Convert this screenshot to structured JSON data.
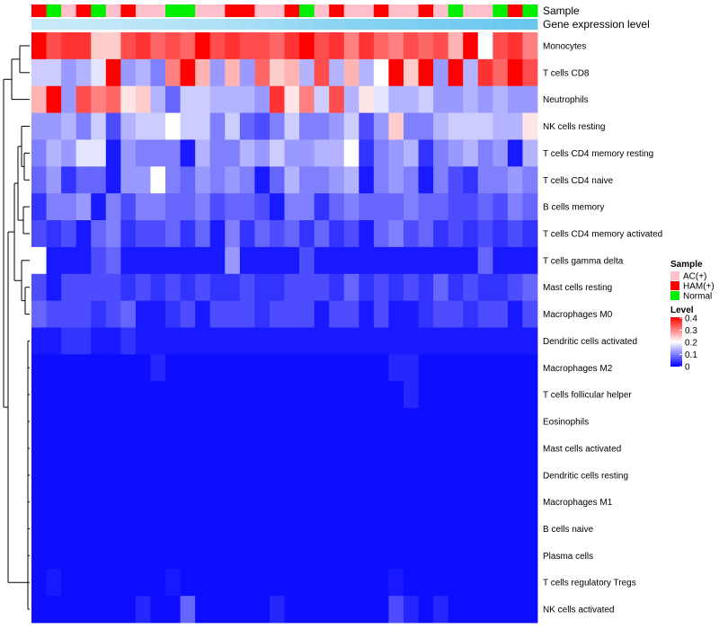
{
  "chart_data": {
    "type": "heatmap",
    "annotation_labels": {
      "sample": "Sample",
      "gene_level": "Gene expression level"
    },
    "rows": [
      "Monocytes",
      "T cells CD8",
      "Neutrophils",
      "NK cells resting",
      "T cells CD4 memory resting",
      "T cells CD4 naive",
      "B cells memory",
      "T cells CD4 memory activated",
      "T cells gamma delta",
      "Mast cells resting",
      "Macrophages M0",
      "Dendritic cells activated",
      "Macrophages M2",
      "T cells follicular helper",
      "Eosinophils",
      "Mast cells activated",
      "Dendritic cells resting",
      "Macrophages M1",
      "B cells naive",
      "Plasma cells",
      "T cells regulatory  Tregs",
      "NK cells activated"
    ],
    "sample_groups": [
      "HAM",
      "NOR",
      "AC",
      "HAM",
      "NOR",
      "AC",
      "HAM",
      "AC",
      "AC",
      "NOR",
      "NOR",
      "AC",
      "AC",
      "HAM",
      "HAM",
      "AC",
      "AC",
      "HAM",
      "NOR",
      "AC",
      "HAM",
      "AC",
      "AC",
      "HAM",
      "AC",
      "AC",
      "HAM",
      "AC",
      "NOR",
      "AC",
      "AC",
      "NOR",
      "HAM",
      "NOR"
    ],
    "gene_level": [
      0.2,
      0.21,
      0.22,
      0.24,
      0.25,
      0.27,
      0.28,
      0.3,
      0.32,
      0.34,
      0.36,
      0.38,
      0.4,
      0.42,
      0.45,
      0.48,
      0.52,
      0.56,
      0.6,
      0.64,
      0.66,
      0.68,
      0.7,
      0.72,
      0.74,
      0.76,
      0.78,
      0.8,
      0.82,
      0.84,
      0.86,
      0.88,
      0.9,
      0.92
    ],
    "matrix": [
      [
        0.4,
        0.34,
        0.36,
        0.36,
        0.24,
        0.24,
        0.34,
        0.36,
        0.32,
        0.34,
        0.32,
        0.4,
        0.34,
        0.36,
        0.34,
        0.34,
        0.32,
        0.36,
        0.4,
        0.34,
        0.36,
        0.3,
        0.36,
        0.32,
        0.3,
        0.34,
        0.32,
        0.34,
        0.26,
        0.4,
        0.2,
        0.34,
        0.36,
        0.3
      ],
      [
        0.16,
        0.16,
        0.12,
        0.14,
        0.18,
        0.4,
        0.12,
        0.14,
        0.1,
        0.3,
        0.4,
        0.26,
        0.12,
        0.26,
        0.12,
        0.32,
        0.24,
        0.26,
        0.14,
        0.34,
        0.14,
        0.26,
        0.14,
        0.2,
        0.4,
        0.24,
        0.4,
        0.12,
        0.4,
        0.14,
        0.36,
        0.32,
        0.4,
        0.34
      ],
      [
        0.26,
        0.4,
        0.12,
        0.34,
        0.3,
        0.32,
        0.22,
        0.24,
        0.14,
        0.08,
        0.16,
        0.16,
        0.14,
        0.14,
        0.14,
        0.12,
        0.36,
        0.22,
        0.3,
        0.16,
        0.34,
        0.14,
        0.22,
        0.18,
        0.14,
        0.14,
        0.16,
        0.12,
        0.12,
        0.14,
        0.12,
        0.14,
        0.12,
        0.12
      ],
      [
        0.12,
        0.12,
        0.14,
        0.1,
        0.16,
        0.06,
        0.14,
        0.16,
        0.16,
        0.2,
        0.16,
        0.16,
        0.1,
        0.16,
        0.08,
        0.06,
        0.1,
        0.16,
        0.1,
        0.1,
        0.12,
        0.16,
        0.06,
        0.12,
        0.24,
        0.1,
        0.1,
        0.14,
        0.16,
        0.16,
        0.16,
        0.14,
        0.14,
        0.22
      ],
      [
        0.1,
        0.14,
        0.12,
        0.18,
        0.18,
        0.02,
        0.12,
        0.1,
        0.1,
        0.1,
        0.02,
        0.14,
        0.1,
        0.1,
        0.14,
        0.12,
        0.16,
        0.12,
        0.12,
        0.14,
        0.14,
        0.2,
        0.04,
        0.1,
        0.12,
        0.14,
        0.04,
        0.1,
        0.12,
        0.14,
        0.1,
        0.12,
        0.02,
        0.14
      ],
      [
        0.08,
        0.12,
        0.04,
        0.08,
        0.08,
        0.02,
        0.12,
        0.12,
        0.2,
        0.1,
        0.08,
        0.12,
        0.1,
        0.12,
        0.1,
        0.02,
        0.08,
        0.14,
        0.1,
        0.1,
        0.12,
        0.14,
        0.02,
        0.1,
        0.12,
        0.1,
        0.02,
        0.1,
        0.06,
        0.04,
        0.1,
        0.1,
        0.12,
        0.1
      ],
      [
        0.04,
        0.1,
        0.1,
        0.12,
        0.02,
        0.1,
        0.06,
        0.1,
        0.1,
        0.08,
        0.08,
        0.1,
        0.06,
        0.08,
        0.08,
        0.06,
        0.02,
        0.1,
        0.1,
        0.04,
        0.08,
        0.1,
        0.08,
        0.08,
        0.08,
        0.1,
        0.08,
        0.08,
        0.06,
        0.06,
        0.08,
        0.06,
        0.1,
        0.08
      ],
      [
        0.06,
        0.04,
        0.06,
        0.02,
        0.08,
        0.1,
        0.04,
        0.06,
        0.06,
        0.08,
        0.04,
        0.08,
        0.02,
        0.1,
        0.04,
        0.08,
        0.06,
        0.08,
        0.04,
        0.08,
        0.04,
        0.06,
        0.02,
        0.08,
        0.1,
        0.06,
        0.08,
        0.04,
        0.06,
        0.04,
        0.06,
        0.04,
        0.06,
        0.04
      ],
      [
        0.2,
        0.02,
        0.02,
        0.02,
        0.06,
        0.08,
        0.02,
        0.02,
        0.02,
        0.02,
        0.02,
        0.02,
        0.02,
        0.12,
        0.02,
        0.02,
        0.02,
        0.02,
        0.06,
        0.02,
        0.02,
        0.02,
        0.02,
        0.02,
        0.02,
        0.02,
        0.02,
        0.02,
        0.02,
        0.02,
        0.08,
        0.02,
        0.02,
        0.02
      ],
      [
        0.06,
        0.02,
        0.06,
        0.06,
        0.06,
        0.06,
        0.04,
        0.06,
        0.04,
        0.06,
        0.04,
        0.06,
        0.04,
        0.04,
        0.06,
        0.04,
        0.04,
        0.06,
        0.06,
        0.06,
        0.04,
        0.08,
        0.04,
        0.06,
        0.04,
        0.06,
        0.04,
        0.08,
        0.04,
        0.06,
        0.04,
        0.04,
        0.06,
        0.08
      ],
      [
        0.08,
        0.06,
        0.06,
        0.06,
        0.04,
        0.06,
        0.08,
        0.02,
        0.02,
        0.04,
        0.06,
        0.02,
        0.06,
        0.06,
        0.06,
        0.04,
        0.06,
        0.06,
        0.06,
        0.02,
        0.06,
        0.06,
        0.02,
        0.06,
        0.02,
        0.02,
        0.04,
        0.06,
        0.06,
        0.04,
        0.06,
        0.06,
        0.02,
        0.06
      ],
      [
        0.02,
        0.02,
        0.04,
        0.04,
        0.02,
        0.02,
        0.04,
        0.02,
        0.02,
        0.02,
        0.02,
        0.02,
        0.02,
        0.02,
        0.02,
        0.02,
        0.02,
        0.02,
        0.02,
        0.02,
        0.02,
        0.02,
        0.02,
        0.02,
        0.02,
        0.02,
        0.02,
        0.02,
        0.02,
        0.02,
        0.02,
        0.02,
        0.02,
        0.02
      ],
      [
        0.01,
        0.01,
        0.01,
        0.01,
        0.01,
        0.01,
        0.01,
        0.01,
        0.03,
        0.01,
        0.01,
        0.01,
        0.01,
        0.01,
        0.01,
        0.01,
        0.01,
        0.01,
        0.01,
        0.01,
        0.01,
        0.01,
        0.01,
        0.01,
        0.03,
        0.03,
        0.01,
        0.01,
        0.01,
        0.01,
        0.01,
        0.01,
        0.01,
        0.01
      ],
      [
        0.01,
        0.01,
        0.01,
        0.01,
        0.01,
        0.01,
        0.01,
        0.01,
        0.01,
        0.01,
        0.01,
        0.01,
        0.01,
        0.01,
        0.01,
        0.01,
        0.01,
        0.01,
        0.01,
        0.01,
        0.01,
        0.01,
        0.01,
        0.01,
        0.01,
        0.03,
        0.01,
        0.01,
        0.01,
        0.01,
        0.01,
        0.01,
        0.01,
        0.01
      ],
      [
        0.01,
        0.01,
        0.01,
        0.01,
        0.01,
        0.01,
        0.01,
        0.01,
        0.01,
        0.01,
        0.01,
        0.01,
        0.01,
        0.01,
        0.01,
        0.01,
        0.01,
        0.01,
        0.01,
        0.01,
        0.01,
        0.01,
        0.01,
        0.01,
        0.01,
        0.01,
        0.01,
        0.01,
        0.01,
        0.01,
        0.01,
        0.01,
        0.01,
        0.01
      ],
      [
        0.01,
        0.01,
        0.01,
        0.01,
        0.01,
        0.01,
        0.01,
        0.01,
        0.01,
        0.01,
        0.01,
        0.01,
        0.01,
        0.01,
        0.01,
        0.01,
        0.01,
        0.01,
        0.01,
        0.01,
        0.01,
        0.01,
        0.01,
        0.01,
        0.01,
        0.01,
        0.01,
        0.01,
        0.01,
        0.01,
        0.01,
        0.01,
        0.01,
        0.01
      ],
      [
        0.01,
        0.01,
        0.01,
        0.01,
        0.01,
        0.01,
        0.01,
        0.01,
        0.01,
        0.01,
        0.01,
        0.01,
        0.01,
        0.01,
        0.01,
        0.01,
        0.01,
        0.01,
        0.01,
        0.01,
        0.01,
        0.01,
        0.01,
        0.01,
        0.01,
        0.01,
        0.01,
        0.01,
        0.01,
        0.01,
        0.01,
        0.01,
        0.01,
        0.01
      ],
      [
        0.01,
        0.01,
        0.01,
        0.01,
        0.01,
        0.01,
        0.01,
        0.01,
        0.01,
        0.01,
        0.01,
        0.01,
        0.01,
        0.01,
        0.01,
        0.01,
        0.01,
        0.01,
        0.01,
        0.01,
        0.01,
        0.01,
        0.01,
        0.01,
        0.01,
        0.01,
        0.01,
        0.01,
        0.01,
        0.01,
        0.01,
        0.01,
        0.01,
        0.01
      ],
      [
        0.01,
        0.01,
        0.01,
        0.01,
        0.01,
        0.01,
        0.01,
        0.01,
        0.01,
        0.01,
        0.01,
        0.01,
        0.01,
        0.01,
        0.01,
        0.01,
        0.01,
        0.01,
        0.01,
        0.01,
        0.01,
        0.01,
        0.01,
        0.01,
        0.01,
        0.01,
        0.01,
        0.01,
        0.01,
        0.01,
        0.01,
        0.01,
        0.01,
        0.01
      ],
      [
        0.01,
        0.01,
        0.01,
        0.01,
        0.01,
        0.01,
        0.01,
        0.01,
        0.01,
        0.01,
        0.01,
        0.01,
        0.01,
        0.01,
        0.01,
        0.01,
        0.01,
        0.01,
        0.01,
        0.01,
        0.01,
        0.01,
        0.01,
        0.01,
        0.01,
        0.01,
        0.01,
        0.01,
        0.01,
        0.01,
        0.01,
        0.01,
        0.01,
        0.01
      ],
      [
        0.01,
        0.02,
        0.01,
        0.01,
        0.01,
        0.01,
        0.01,
        0.01,
        0.01,
        0.02,
        0.01,
        0.01,
        0.01,
        0.01,
        0.01,
        0.01,
        0.01,
        0.01,
        0.01,
        0.01,
        0.01,
        0.01,
        0.01,
        0.01,
        0.02,
        0.01,
        0.01,
        0.01,
        0.01,
        0.01,
        0.01,
        0.01,
        0.01,
        0.01
      ],
      [
        0.01,
        0.01,
        0.01,
        0.01,
        0.01,
        0.01,
        0.01,
        0.03,
        0.01,
        0.01,
        0.08,
        0.01,
        0.01,
        0.01,
        0.01,
        0.01,
        0.03,
        0.01,
        0.01,
        0.01,
        0.01,
        0.01,
        0.01,
        0.01,
        0.06,
        0.03,
        0.01,
        0.03,
        0.01,
        0.01,
        0.01,
        0.01,
        0.01,
        0.01
      ]
    ],
    "legend": {
      "sample_title": "Sample",
      "sample_items": [
        {
          "key": "AC",
          "label": "AC(+)",
          "color": "#FFC0CB"
        },
        {
          "key": "HAM",
          "label": "HAM(+)",
          "color": "#FF0000"
        },
        {
          "key": "NOR",
          "label": "Normal",
          "color": "#00EE00"
        }
      ],
      "level_title": "Level",
      "level_ticks": [
        "0.4",
        "0.3",
        "0.2",
        "0.1",
        "0"
      ]
    },
    "color_scale": {
      "min": 0,
      "mid": 0.2,
      "max": 0.4,
      "low": "#0000FF",
      "mid_color": "#FFFFFF",
      "high": "#FF0000"
    },
    "gene_level_colors": {
      "low": "#E3F4FB",
      "high": "#5EC3EE"
    }
  }
}
